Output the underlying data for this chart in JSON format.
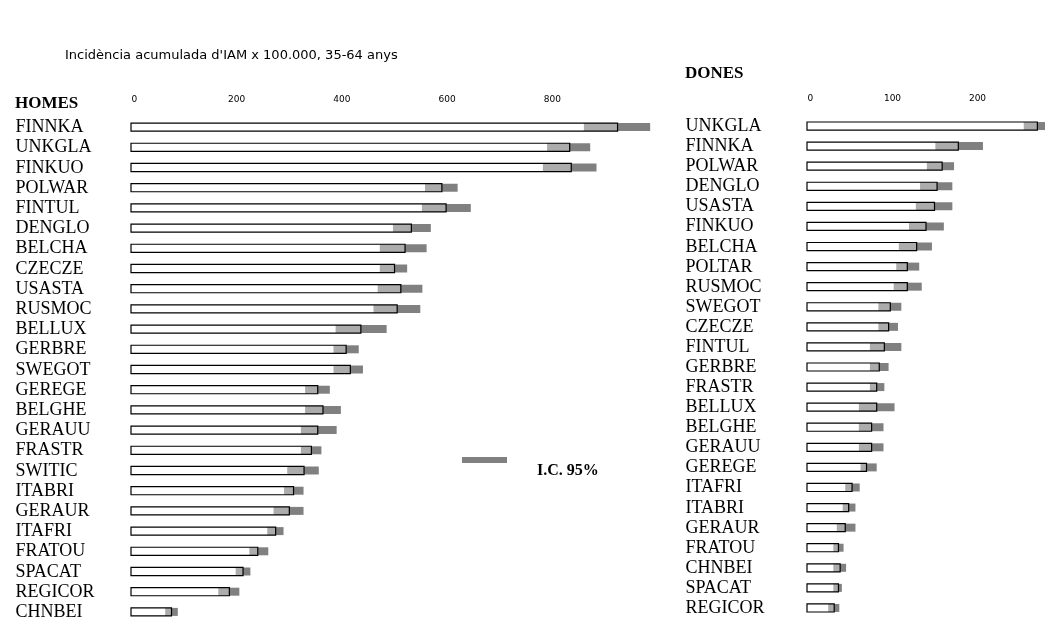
{
  "chart_data": [
    {
      "type": "bar",
      "orientation": "horizontal",
      "title": "HOMES",
      "color": "#ffffff",
      "annotations": [
        "Incidència acumulada d'IAM x 100.000, 35-64 anys",
        "I.C. 95%"
      ],
      "categories": [
        "FINNKA",
        "UNKGLA",
        "FINKUO",
        "POLWAR",
        "FINTUL",
        "DENGLO",
        "BELCHA",
        "CZECZE",
        "USASTA",
        "RUSMOC",
        "BELLUX",
        "GERBRE",
        "SWEGOT",
        "GEREGE",
        "BELGHE",
        "GERAUU",
        "FRASTR",
        "SWITIC",
        "ITABRI",
        "GERAUR",
        "ITAFRI",
        "FRATOU",
        "SPACAT",
        "REGICOR",
        "CHNBEI"
      ],
      "values": [
        925,
        834,
        837,
        591,
        599,
        533,
        521,
        501,
        513,
        506,
        437,
        409,
        417,
        355,
        365,
        355,
        343,
        329,
        309,
        301,
        275,
        241,
        213,
        187,
        77
      ],
      "errors": [
        [
          861,
          987
        ],
        [
          791,
          873
        ],
        [
          783,
          885
        ],
        [
          559,
          621
        ],
        [
          553,
          646
        ],
        [
          498,
          570
        ],
        [
          473,
          562
        ],
        [
          473,
          525
        ],
        [
          469,
          554
        ],
        [
          461,
          550
        ],
        [
          389,
          486
        ],
        [
          385,
          433
        ],
        [
          385,
          441
        ],
        [
          331,
          378
        ],
        [
          331,
          399
        ],
        [
          323,
          391
        ],
        [
          323,
          362
        ],
        [
          297,
          357
        ],
        [
          291,
          328
        ],
        [
          271,
          328
        ],
        [
          259,
          290
        ],
        [
          225,
          261
        ],
        [
          199,
          227
        ],
        [
          166,
          206
        ],
        [
          65,
          89
        ]
      ],
      "xlim": [
        0,
        1000
      ],
      "xticks": [
        0,
        200,
        400,
        600,
        800
      ]
    },
    {
      "type": "bar",
      "orientation": "horizontal",
      "title": "DONES",
      "color": "#ffffff",
      "categories": [
        "UNKGLA",
        "FINNKA",
        "POLWAR",
        "DENGLO",
        "USASTA",
        "FINKUO",
        "BELCHA",
        "POLTAR",
        "RUSMOC",
        "SWEGOT",
        "CZECZE",
        "FINTUL",
        "GERBRE",
        "FRASTR",
        "BELLUX",
        "BELGHE",
        "GERAUU",
        "GEREGE",
        "ITAFRI",
        "ITABRI",
        "GERAUR",
        "FRATOU",
        "CHNBEI",
        "SPACAT",
        "REGICOR"
      ],
      "values": [
        271,
        178,
        159,
        153,
        150,
        140,
        129,
        118,
        118,
        98,
        96,
        91,
        85,
        82,
        82,
        76,
        76,
        70,
        53,
        49,
        45,
        37,
        39,
        37,
        32
      ],
      "errors": [
        [
          255,
          280
        ],
        [
          151,
          207
        ],
        [
          141,
          173
        ],
        [
          133,
          171
        ],
        [
          128,
          171
        ],
        [
          120,
          161
        ],
        [
          108,
          147
        ],
        [
          105,
          132
        ],
        [
          102,
          135
        ],
        [
          84,
          111
        ],
        [
          84,
          107
        ],
        [
          74,
          111
        ],
        [
          74,
          96
        ],
        [
          74,
          91
        ],
        [
          61,
          103
        ],
        [
          61,
          90
        ],
        [
          61,
          90
        ],
        [
          63,
          82
        ],
        [
          45,
          62
        ],
        [
          42,
          57
        ],
        [
          35,
          57
        ],
        [
          31,
          43
        ],
        [
          31,
          46
        ],
        [
          31,
          41
        ],
        [
          25,
          38
        ]
      ],
      "xlim": [
        0,
        280
      ],
      "xticks": [
        0,
        100,
        200
      ]
    }
  ]
}
